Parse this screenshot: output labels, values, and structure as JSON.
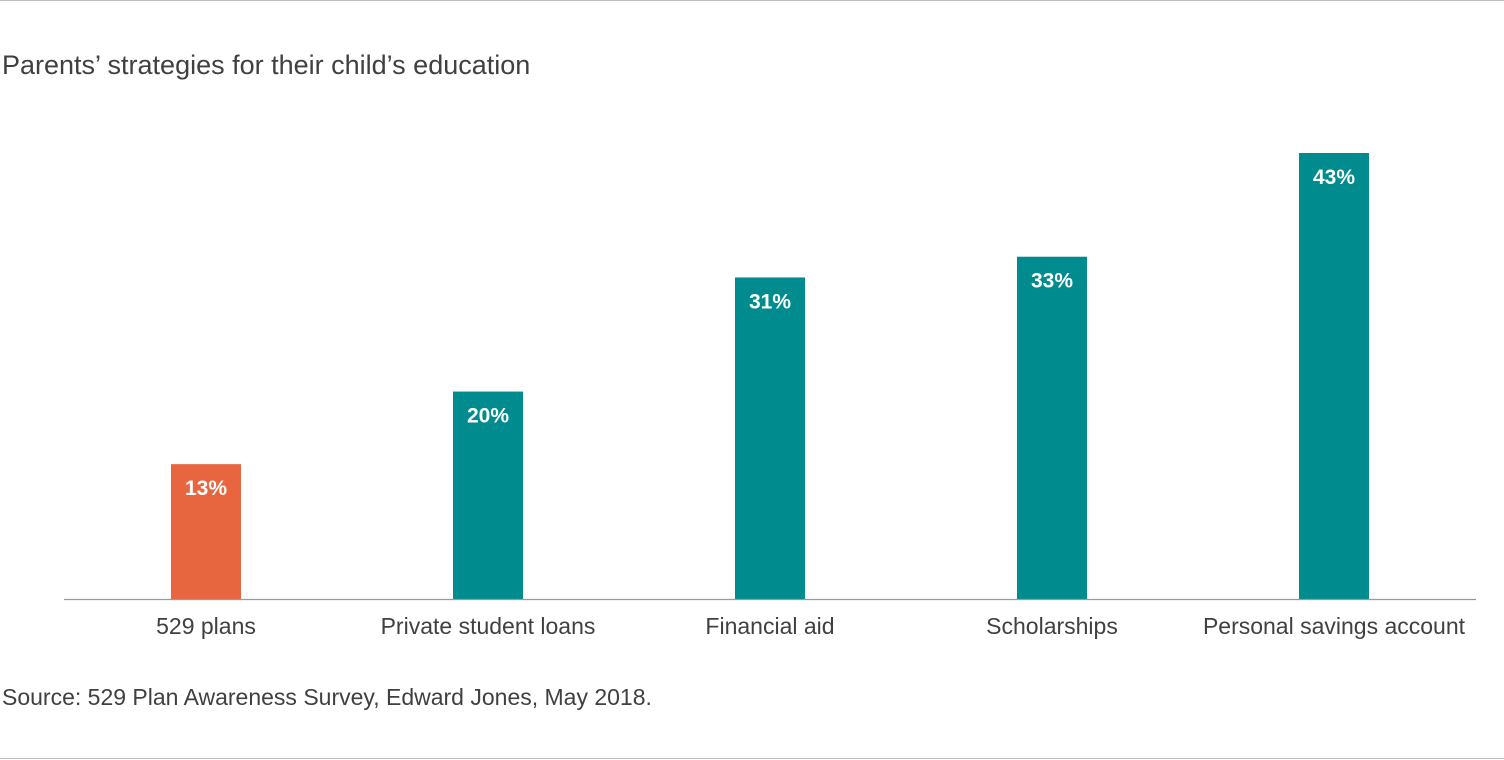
{
  "title": "Parents’ strategies for their child’s education",
  "source": "Source: 529 Plan Awareness Survey, Edward Jones, May 2018.",
  "colors": {
    "highlight": "#e8663f",
    "bar": "#008b8e",
    "axis": "#9a9a9a"
  },
  "chart_data": {
    "type": "bar",
    "title": "Parents’ strategies for their child’s education",
    "xlabel": "",
    "ylabel": "",
    "categories": [
      "529 plans",
      "Private student loans",
      "Financial aid",
      "Scholarships",
      "Personal savings account"
    ],
    "values": [
      13,
      20,
      31,
      33,
      43
    ],
    "value_labels": [
      "13%",
      "20%",
      "31%",
      "33%",
      "43%"
    ],
    "unit": "%",
    "highlight_index": 0,
    "ylim": [
      0,
      43
    ],
    "grid": false,
    "legend": "none"
  }
}
